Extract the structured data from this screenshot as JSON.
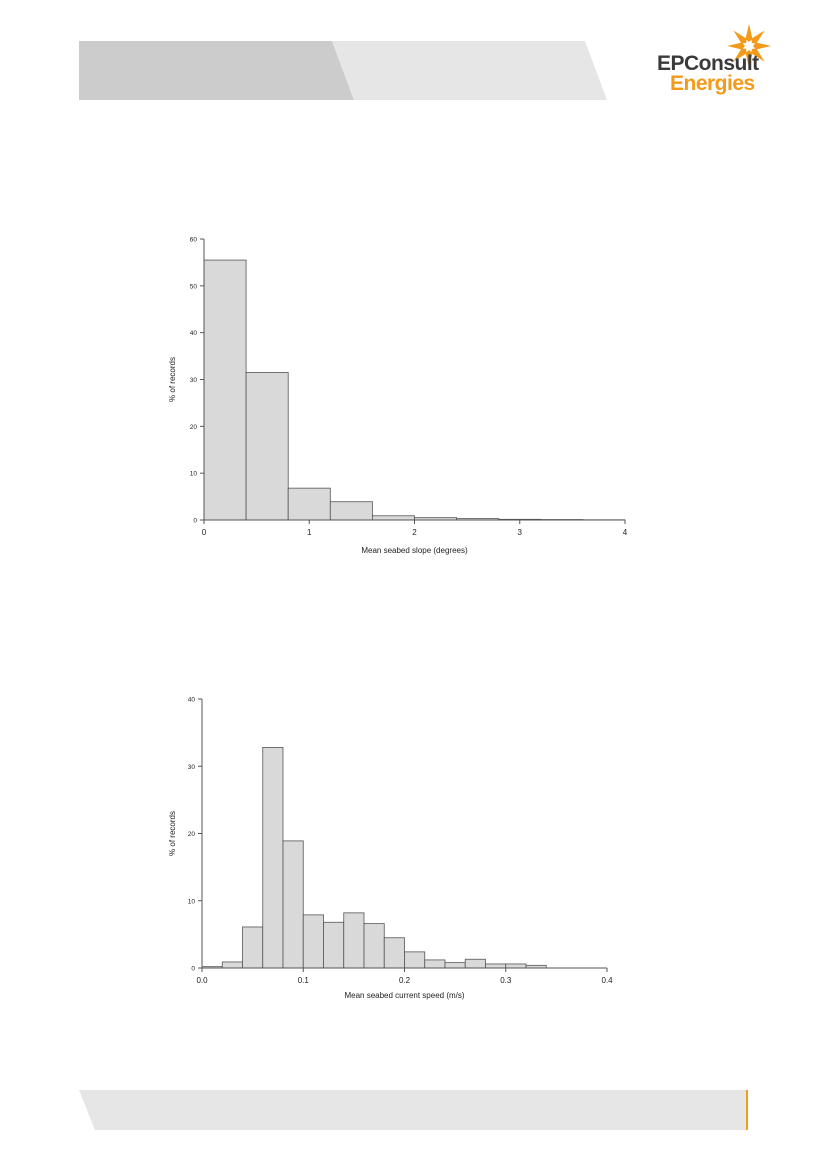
{
  "logo": {
    "line1": "EPConsult",
    "line2": "Energies"
  },
  "colors": {
    "header_dark": "#cccccc",
    "header_light": "#e6e6e6",
    "footer": "#e6e6e6",
    "accent": "#f39a1b",
    "bar_fill": "#d9d9d9",
    "bar_stroke": "#555555"
  },
  "chart_data": [
    {
      "type": "bar",
      "xlabel": "Mean seabed slope (degrees)",
      "ylabel": "% of records",
      "xlim": [
        0,
        4
      ],
      "ylim": [
        0,
        60
      ],
      "xticks": [
        0,
        1,
        2,
        3,
        4
      ],
      "xtick_labels": [
        "0",
        "1",
        "2",
        "3",
        "4"
      ],
      "yticks": [
        0,
        10,
        20,
        30,
        40,
        50,
        60
      ],
      "ytick_labels": [
        "0",
        "10",
        "20",
        "30",
        "40",
        "50",
        "60"
      ],
      "bin_edges": [
        0,
        0.4,
        0.8,
        1.2,
        1.6,
        2.0,
        2.4,
        2.8,
        3.2,
        3.6,
        4.0
      ],
      "values": [
        55.5,
        31.5,
        6.8,
        3.9,
        0.9,
        0.5,
        0.3,
        0.15,
        0.1,
        0.05
      ],
      "grid": false
    },
    {
      "type": "bar",
      "xlabel": "Mean seabed current speed (m/s)",
      "ylabel": "% of records",
      "xlim": [
        0,
        0.4
      ],
      "ylim": [
        0,
        40
      ],
      "xticks": [
        0,
        0.1,
        0.2,
        0.3,
        0.4
      ],
      "xtick_labels": [
        "0.0",
        "0.1",
        "0.2",
        "0.3",
        "0.4"
      ],
      "yticks": [
        0,
        10,
        20,
        30,
        40
      ],
      "ytick_labels": [
        "0",
        "10",
        "20",
        "30",
        "40"
      ],
      "bin_edges": [
        0,
        0.02,
        0.04,
        0.06,
        0.08,
        0.1,
        0.12,
        0.14,
        0.16,
        0.18,
        0.2,
        0.22,
        0.24,
        0.26,
        0.28,
        0.3,
        0.32,
        0.34
      ],
      "values": [
        0.2,
        0.9,
        6.1,
        32.8,
        18.9,
        7.9,
        6.8,
        8.2,
        6.6,
        4.5,
        2.4,
        1.2,
        0.8,
        1.3,
        0.6,
        0.6,
        0.4
      ],
      "grid": false
    }
  ]
}
